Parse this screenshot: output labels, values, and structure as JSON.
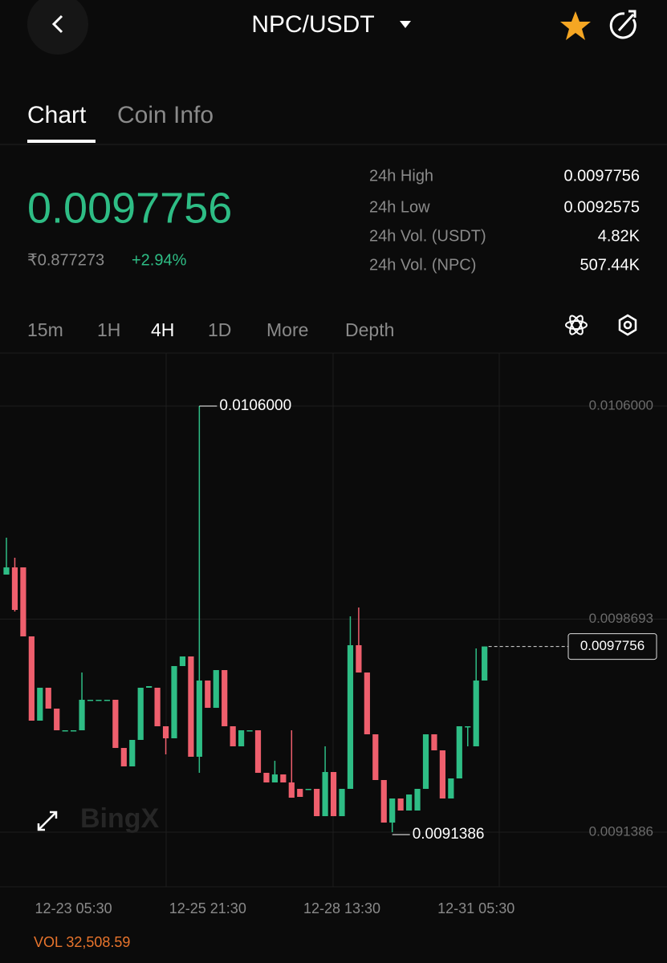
{
  "header": {
    "title": "NPC/USDT"
  },
  "tabs": [
    "Chart",
    "Coin Info"
  ],
  "ticker": {
    "price": "0.0097756",
    "local_price": "₹0.877273",
    "change": "+2.94%",
    "stats": [
      {
        "label": "24h High",
        "value": "0.0097756"
      },
      {
        "label": "24h Low",
        "value": "0.0092575"
      },
      {
        "label": "24h Vol. (USDT)",
        "value": "4.82K"
      },
      {
        "label": "24h Vol. (NPC)",
        "value": "507.44K"
      }
    ]
  },
  "intervals": [
    "15m",
    "1H",
    "4H",
    "1D",
    "More",
    "Depth"
  ],
  "watermark": "BingX",
  "volume": "VOL 32,508.59",
  "chart_data": {
    "type": "candlestick",
    "x": [
      null,
      null,
      null,
      null,
      null,
      null,
      null,
      null,
      "12-23 05:30",
      null,
      null,
      null,
      null,
      null,
      null,
      null,
      null,
      null,
      null,
      null,
      null,
      null,
      null,
      null,
      "12-25 21:30",
      null,
      null,
      null,
      null,
      null,
      null,
      null,
      null,
      null,
      null,
      null,
      null,
      null,
      null,
      null,
      "12-28 13:30",
      null,
      null,
      null,
      null,
      null,
      null,
      null,
      null,
      null,
      null,
      null,
      null,
      null,
      null,
      null,
      "12-31 05:30",
      null
    ],
    "open": [
      0.0100221,
      0.0100468,
      0.0100468,
      0.0098102,
      0.0095212,
      0.0096341,
      0.0095625,
      0.0094882,
      0.0094882,
      0.0094882,
      0.0095928,
      0.0095928,
      0.0095928,
      0.0095928,
      0.0094276,
      0.0093644,
      0.0094552,
      0.0096341,
      0.0096341,
      0.009502,
      0.0094607,
      0.0097084,
      0.0097414,
      0.0093974,
      0.0096588,
      0.0095652,
      0.0096946,
      0.009502,
      0.0094332,
      0.0094882,
      0.0094882,
      0.0093423,
      0.0093093,
      0.0093368,
      0.0093093,
      0.0092873,
      0.0092873,
      0.0092873,
      0.0091937,
      0.0093451,
      0.0091937,
      0.0092873,
      0.0097799,
      0.0096863,
      0.0094744,
      0.0093176,
      0.0091717,
      0.0092543,
      0.009213,
      0.009213,
      0.0092873,
      0.0094744,
      0.0094194,
      0.0092543,
      0.0093231,
      0.009502,
      0.0094332,
      0.0096588
    ],
    "high": [
      0.0101487,
      0.0100799,
      0.0100468,
      0.0098102,
      0.0096341,
      0.0096341,
      0.0095625,
      0.0094882,
      0.0094882,
      0.0096863,
      0.0095928,
      0.0095928,
      0.0095928,
      0.0095928,
      0.0094276,
      0.0094552,
      0.0096341,
      0.0096396,
      0.0096341,
      0.009502,
      0.0097084,
      0.0097414,
      0.0097414,
      0.0106,
      0.0096588,
      0.0096946,
      0.0096946,
      0.009502,
      0.0094882,
      0.0094882,
      0.0094882,
      0.0093423,
      0.0093836,
      0.0093368,
      0.0094882,
      0.0092873,
      0.0092873,
      0.0092873,
      0.0094332,
      0.0093451,
      0.0092873,
      0.009879,
      0.0099092,
      0.0096863,
      0.0094744,
      0.0093176,
      0.0092543,
      0.0092543,
      0.009268,
      0.0092873,
      0.0094744,
      0.0094744,
      0.0094194,
      0.0093231,
      0.009502,
      0.009502,
      0.0097689,
      0.0097756
    ],
    "low": [
      0.0100221,
      0.0098955,
      0.0098102,
      0.0095212,
      0.0095212,
      0.0095625,
      0.0094882,
      0.0094882,
      0.0094882,
      0.0094882,
      0.0095928,
      0.0095928,
      0.0095928,
      0.0094276,
      0.0093644,
      0.0093644,
      0.0094552,
      0.0096341,
      0.009502,
      0.0094056,
      0.0094607,
      0.0097084,
      0.0093974,
      0.0093423,
      0.0095652,
      0.0095652,
      0.009502,
      0.0094332,
      0.0094332,
      0.0094882,
      0.0093423,
      0.0093093,
      0.0093093,
      0.0093093,
      0.009257,
      0.0092598,
      0.0092873,
      0.0091937,
      0.0091937,
      0.0091937,
      0.0091937,
      0.0092873,
      0.0096863,
      0.0094744,
      0.0093176,
      0.0091717,
      0.0091386,
      0.009213,
      0.009213,
      0.009213,
      0.0092873,
      0.0094194,
      0.0092543,
      0.0092543,
      0.0093231,
      0.0094332,
      0.0094332,
      0.0096588
    ],
    "close": [
      0.0100468,
      0.009901,
      0.0098102,
      0.0095212,
      0.0096341,
      0.0095625,
      0.0094882,
      0.0094882,
      0.0094882,
      0.0095928,
      0.0095928,
      0.0095928,
      0.0095928,
      0.0094276,
      0.0093644,
      0.0094552,
      0.0096341,
      0.0096396,
      0.009502,
      0.0094607,
      0.0097084,
      0.0097414,
      0.0093974,
      0.0096588,
      0.0095652,
      0.0096946,
      0.009502,
      0.0094332,
      0.0094882,
      0.0094882,
      0.0093423,
      0.0093093,
      0.0093368,
      0.0093093,
      0.009257,
      0.0092598,
      0.0092873,
      0.0091937,
      0.0093451,
      0.0091937,
      0.0092873,
      0.0097799,
      0.0096863,
      0.0094744,
      0.0093176,
      0.0091717,
      0.0092543,
      0.009213,
      0.009268,
      0.0092873,
      0.0094744,
      0.0094194,
      0.0092543,
      0.0093231,
      0.009502,
      0.009502,
      0.0096588,
      0.0097756
    ],
    "up_color": "#2ebd85",
    "down_color": "#ef5f6d",
    "ylim": [
      0.0089516,
      0.0107816
    ],
    "yticks": [
      {
        "value": 0.0106,
        "label": "0.0106000"
      },
      {
        "value": 0.0098693,
        "label": "0.0098693"
      },
      {
        "value": 0.0091386,
        "label": "0.0091386"
      }
    ],
    "high_label": {
      "value": 0.0106,
      "label": "0.0106000"
    },
    "low_label": {
      "value": 0.0091386,
      "label": "0.0091386"
    },
    "last_price": 0.0097756,
    "grid": true
  }
}
